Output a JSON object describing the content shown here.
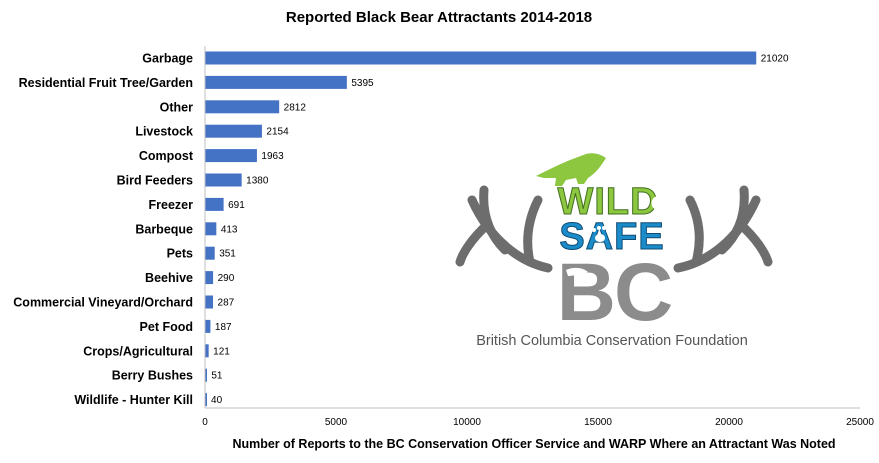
{
  "chart_data": {
    "type": "bar",
    "orientation": "horizontal",
    "title": "Reported Black Bear Attractants 2014-2018",
    "xlabel": "Number of Reports to the BC Conservation Officer Service and WARP Where an Attractant Was Noted",
    "ylabel": "",
    "categories": [
      "Garbage",
      "Residential Fruit Tree/Garden",
      "Other",
      "Livestock",
      "Compost",
      "Bird Feeders",
      "Freezer",
      "Barbeque",
      "Pets",
      "Beehive",
      "Commercial Vineyard/Orchard",
      "Pet Food",
      "Crops/Agricultural",
      "Berry Bushes",
      "Wildlife - Hunter Kill"
    ],
    "values": [
      21020,
      5395,
      2812,
      2154,
      1963,
      1380,
      691,
      413,
      351,
      290,
      287,
      187,
      121,
      51,
      40
    ],
    "xlim": [
      0,
      25000
    ],
    "xticks": [
      0,
      5000,
      10000,
      15000,
      20000,
      25000
    ],
    "data_labels": true,
    "grid": false,
    "legend": "none",
    "bar_color": "#4472C4"
  },
  "logo": {
    "word_top": "WILD",
    "word_middle": "SAFE",
    "word_bottom": "BC",
    "organization": "British Columbia Conservation Foundation",
    "icon_names": [
      "cougar-icon",
      "squirrel-icon",
      "paw-print-icon",
      "antlers-icon",
      "bc-map-icon"
    ],
    "colors": {
      "green": "#8DC63F",
      "blue": "#1B8BC9",
      "gray": "#8C8C8C",
      "dark_gray": "#6D6D6D"
    }
  }
}
